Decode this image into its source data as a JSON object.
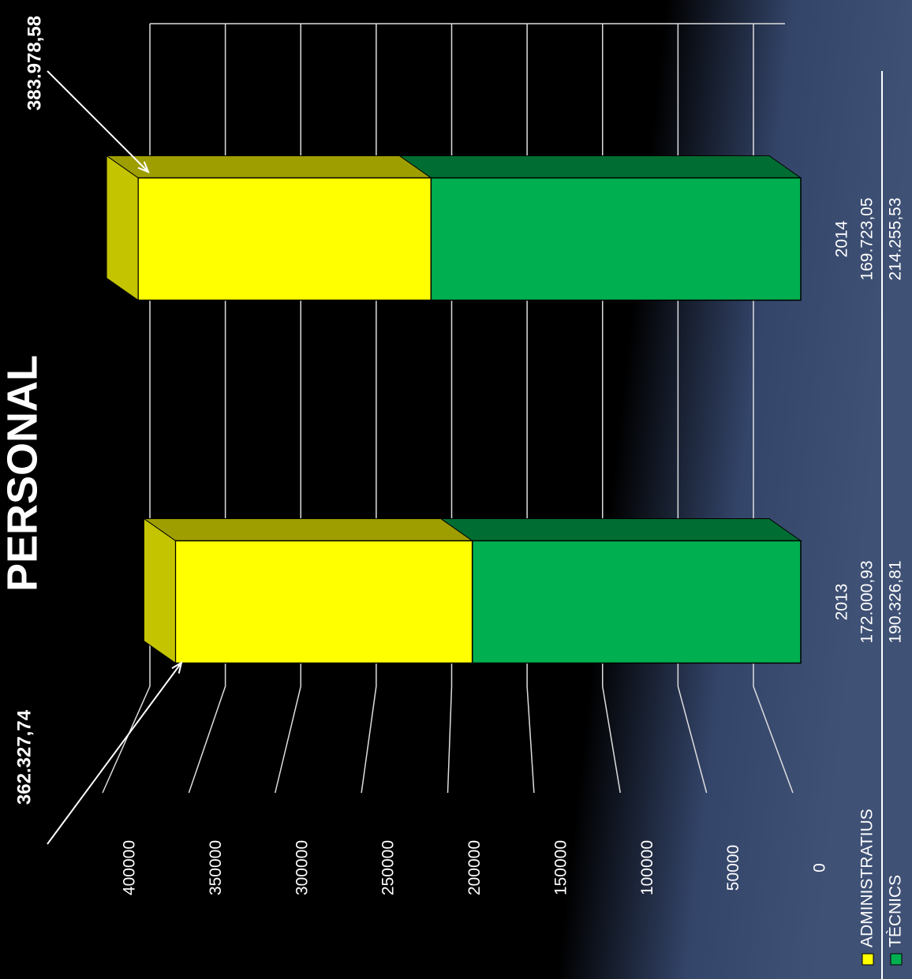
{
  "chart_data": {
    "type": "stacked_bar_3d",
    "title": "PERSONAL",
    "categories": [
      "2013",
      "2014"
    ],
    "series": [
      {
        "name": "TÈCNICS",
        "color": "#00b050",
        "values": [
          190326.81,
          214255.53
        ],
        "value_labels": [
          "190.326,81",
          "214.255,53"
        ]
      },
      {
        "name": "ADMINISTRATIUS",
        "color": "#ffff00",
        "values": [
          172000.93,
          169723.05
        ],
        "value_labels": [
          "172.000,93",
          "169.723,05"
        ]
      }
    ],
    "totals": [
      362327.74,
      383978.58
    ],
    "total_labels": [
      "362.327,74",
      "383.978,58"
    ],
    "ylim": [
      0,
      400000
    ],
    "yticks": [
      0,
      50000,
      100000,
      150000,
      200000,
      250000,
      300000,
      350000,
      400000
    ],
    "grid": true
  }
}
